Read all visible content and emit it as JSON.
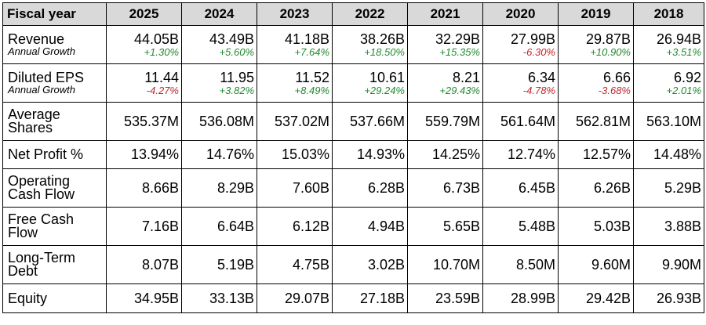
{
  "header": {
    "label": "Fiscal year",
    "years": [
      "2025",
      "2024",
      "2023",
      "2022",
      "2021",
      "2020",
      "2019",
      "2018"
    ]
  },
  "rows": [
    {
      "label": "Revenue",
      "sublabel": "Annual Growth",
      "values": [
        "44.05B",
        "43.49B",
        "41.18B",
        "38.26B",
        "32.29B",
        "27.99B",
        "29.87B",
        "26.94B"
      ],
      "growth": [
        "+1.30%",
        "+5.60%",
        "+7.64%",
        "+18.50%",
        "+15.35%",
        "-6.30%",
        "+10.90%",
        "+3.51%"
      ]
    },
    {
      "label": "Diluted EPS",
      "sublabel": "Annual Growth",
      "values": [
        "11.44",
        "11.95",
        "11.52",
        "10.61",
        "8.21",
        "6.34",
        "6.66",
        "6.92"
      ],
      "growth": [
        "-4.27%",
        "+3.82%",
        "+8.49%",
        "+29.24%",
        "+29.43%",
        "-4.78%",
        "-3.68%",
        "+2.01%"
      ]
    },
    {
      "label": "Average Shares",
      "values": [
        "535.37M",
        "536.08M",
        "537.02M",
        "537.66M",
        "559.79M",
        "561.64M",
        "562.81M",
        "563.10M"
      ]
    },
    {
      "label": "Net Profit %",
      "values": [
        "13.94%",
        "14.76%",
        "15.03%",
        "14.93%",
        "14.25%",
        "12.74%",
        "12.57%",
        "14.48%"
      ]
    },
    {
      "label": "Operating Cash Flow",
      "values": [
        "8.66B",
        "8.29B",
        "7.60B",
        "6.28B",
        "6.73B",
        "6.45B",
        "6.26B",
        "5.29B"
      ]
    },
    {
      "label": "Free Cash Flow",
      "values": [
        "7.16B",
        "6.64B",
        "6.12B",
        "4.94B",
        "5.65B",
        "5.48B",
        "5.03B",
        "3.88B"
      ]
    },
    {
      "label": "Long-Term Debt",
      "values": [
        "8.07B",
        "5.19B",
        "4.75B",
        "3.02B",
        "10.70M",
        "8.50M",
        "9.60M",
        "9.90M"
      ]
    },
    {
      "label": "Equity",
      "values": [
        "34.95B",
        "33.13B",
        "29.07B",
        "27.18B",
        "23.59B",
        "28.99B",
        "29.42B",
        "26.93B"
      ]
    }
  ],
  "colors": {
    "positive": "#1f8a2e",
    "negative": "#c0262d",
    "header_bg": "#d9d9d9"
  }
}
